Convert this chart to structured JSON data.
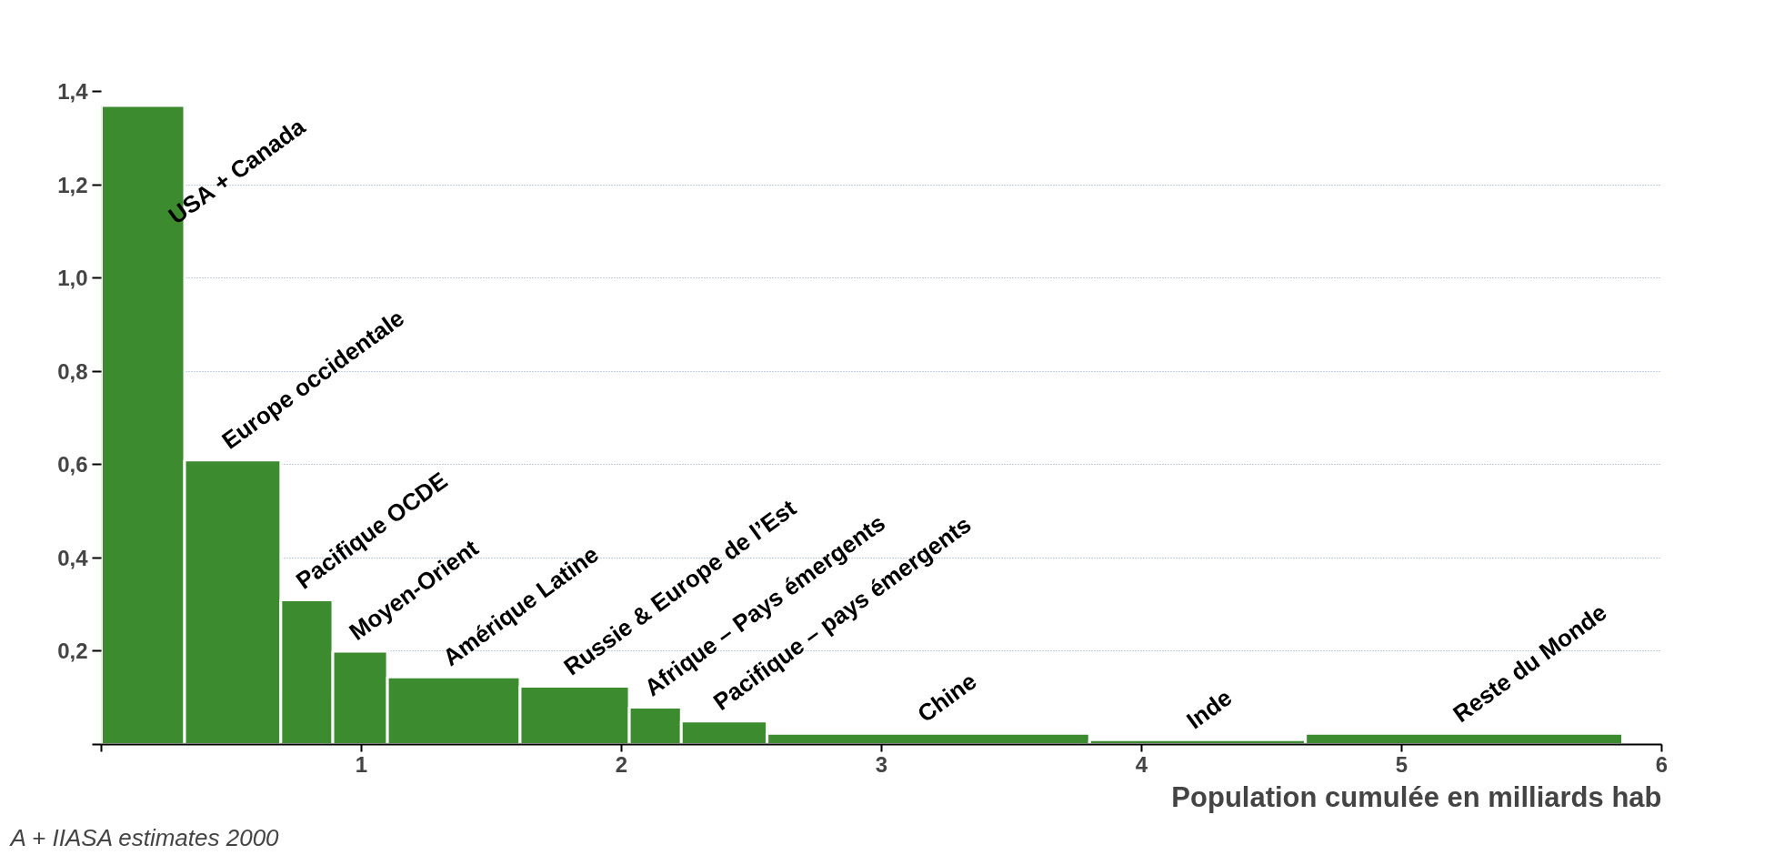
{
  "chart_data": {
    "type": "histogram",
    "xlabel": "Population cumulée en milliards hab",
    "bins": [
      0,
      0.32,
      0.69,
      0.89,
      1.1,
      1.61,
      2.03,
      2.23,
      2.56,
      3.8,
      4.63,
      5.85
    ],
    "values": [
      1.37,
      0.61,
      0.31,
      0.2,
      0.145,
      0.125,
      0.08,
      0.05,
      0.024,
      0.01,
      0.024
    ],
    "color": "#3d8b2f",
    "xlim": [
      0,
      6
    ],
    "ylim": [
      0,
      1.4
    ],
    "xticks": [
      {
        "value": 0,
        "label": null
      },
      1,
      2,
      3,
      4,
      5,
      6
    ],
    "yticks": [
      {
        "value": 0,
        "label": null
      },
      {
        "value": 0.2,
        "label": "0,2"
      },
      {
        "value": 0.4,
        "label": "0,4"
      },
      {
        "value": 0.6,
        "label": "0,6"
      },
      {
        "value": 0.8,
        "label": "0,8"
      },
      {
        "value": 1.0,
        "label": "1,0"
      },
      {
        "value": 1.2,
        "label": "1,2"
      },
      {
        "value": 1.4,
        "label": "1,4"
      }
    ],
    "grid": "y",
    "annotations": [
      "USA + Canada",
      "Europe occidentale",
      "Pacifique OCDE",
      "Moyen-Orient",
      "Amérique Latine",
      "Russie & Europe de l’Est",
      "Afrique – Pays émergents",
      "Pacifique – pays émergents",
      "Chine",
      "Inde",
      "Reste du Monde",
      "A + IIASA estimates 2000"
    ]
  }
}
